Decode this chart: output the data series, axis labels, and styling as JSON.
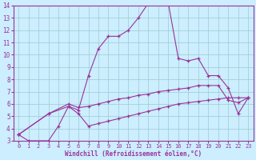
{
  "xlabel": "Windchill (Refroidissement éolien,°C)",
  "bg_color": "#cceeff",
  "line_color": "#993399",
  "grid_color": "#99cccc",
  "xlim": [
    -0.5,
    23.5
  ],
  "ylim": [
    3,
    14
  ],
  "xticks": [
    0,
    1,
    2,
    3,
    4,
    5,
    6,
    7,
    8,
    9,
    10,
    11,
    12,
    13,
    14,
    15,
    16,
    17,
    18,
    19,
    20,
    21,
    22,
    23
  ],
  "yticks": [
    3,
    4,
    5,
    6,
    7,
    8,
    9,
    10,
    11,
    12,
    13,
    14
  ],
  "line1_x": [
    0,
    1,
    3,
    4,
    5,
    6,
    7,
    8,
    9,
    10,
    11,
    12,
    13,
    14,
    15,
    16,
    17,
    18,
    19,
    20,
    21,
    22,
    23
  ],
  "line1_y": [
    3.5,
    3.0,
    3.0,
    4.2,
    5.8,
    5.5,
    8.3,
    10.5,
    11.5,
    11.5,
    12.0,
    13.0,
    14.2,
    14.5,
    14.2,
    9.7,
    9.5,
    9.7,
    8.3,
    8.3,
    7.3,
    5.2,
    6.5
  ],
  "line2_x": [
    0,
    3,
    5,
    6,
    7,
    8,
    9,
    10,
    11,
    12,
    13,
    14,
    15,
    16,
    17,
    18,
    19,
    20,
    21,
    22,
    23
  ],
  "line2_y": [
    3.5,
    5.2,
    6.0,
    5.7,
    5.8,
    6.0,
    6.2,
    6.4,
    6.5,
    6.7,
    6.8,
    7.0,
    7.1,
    7.2,
    7.3,
    7.5,
    7.5,
    7.5,
    6.3,
    6.1,
    6.5
  ],
  "line3_x": [
    0,
    3,
    5,
    6,
    7,
    8,
    9,
    10,
    11,
    12,
    13,
    14,
    15,
    16,
    17,
    18,
    19,
    20,
    21,
    22,
    23
  ],
  "line3_y": [
    3.5,
    5.2,
    5.8,
    5.2,
    4.2,
    4.4,
    4.6,
    4.8,
    5.0,
    5.2,
    5.4,
    5.6,
    5.8,
    6.0,
    6.1,
    6.2,
    6.3,
    6.4,
    6.5,
    6.5,
    6.5
  ],
  "figsize": [
    3.2,
    2.0
  ],
  "dpi": 100
}
